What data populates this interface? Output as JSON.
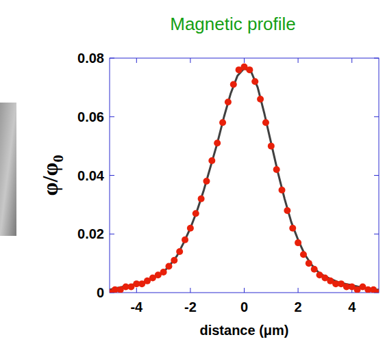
{
  "chart_data": {
    "type": "scatter",
    "title": "Magnetic profile",
    "x_label": "distance (μm)",
    "y_label": "φ/φ0",
    "xlim": [
      -5,
      5
    ],
    "ylim": [
      0,
      0.08
    ],
    "xticks": [
      -4,
      -2,
      0,
      2,
      4
    ],
    "yticks": [
      0,
      0.02,
      0.04,
      0.06,
      0.08
    ],
    "series": [
      {
        "type": "scatter",
        "color": "#e8200a",
        "marker": "circle",
        "x": [
          -5.0,
          -4.8,
          -4.6,
          -4.4,
          -4.2,
          -4.0,
          -3.8,
          -3.6,
          -3.4,
          -3.2,
          -3.0,
          -2.8,
          -2.6,
          -2.4,
          -2.2,
          -2.0,
          -1.8,
          -1.6,
          -1.4,
          -1.2,
          -1.0,
          -0.8,
          -0.6,
          -0.4,
          -0.2,
          0.0,
          0.2,
          0.4,
          0.6,
          0.8,
          1.0,
          1.2,
          1.4,
          1.6,
          1.8,
          2.0,
          2.2,
          2.4,
          2.6,
          2.8,
          3.0,
          3.2,
          3.4,
          3.6,
          3.8,
          4.0,
          4.2,
          4.4,
          4.6,
          4.8,
          5.0
        ],
        "values": [
          0.0,
          0.001,
          0.001,
          0.002,
          0.002,
          0.003,
          0.003,
          0.004,
          0.005,
          0.006,
          0.007,
          0.009,
          0.011,
          0.014,
          0.018,
          0.022,
          0.027,
          0.032,
          0.038,
          0.045,
          0.051,
          0.058,
          0.065,
          0.071,
          0.076,
          0.077,
          0.076,
          0.072,
          0.066,
          0.058,
          0.05,
          0.042,
          0.035,
          0.028,
          0.022,
          0.017,
          0.013,
          0.01,
          0.008,
          0.006,
          0.005,
          0.004,
          0.003,
          0.003,
          0.002,
          0.002,
          0.001,
          0.002,
          0.001,
          0.001,
          0.0
        ]
      },
      {
        "type": "line",
        "color": "#404040",
        "line_style": "solid",
        "x": [
          -5,
          -4.75,
          -4.5,
          -4.25,
          -4,
          -3.75,
          -3.5,
          -3.25,
          -3,
          -2.75,
          -2.5,
          -2.25,
          -2,
          -1.75,
          -1.5,
          -1.25,
          -1,
          -0.75,
          -0.5,
          -0.25,
          0,
          0.25,
          0.5,
          0.75,
          1,
          1.25,
          1.5,
          1.75,
          2,
          2.25,
          2.5,
          2.75,
          3,
          3.25,
          3.5,
          3.75,
          4,
          4.25,
          4.5,
          4.75,
          5
        ],
        "values": [
          0.001,
          0.0015,
          0.002,
          0.0025,
          0.003,
          0.0035,
          0.0045,
          0.0055,
          0.007,
          0.0095,
          0.0125,
          0.017,
          0.022,
          0.028,
          0.035,
          0.043,
          0.051,
          0.06,
          0.068,
          0.074,
          0.0765,
          0.0755,
          0.07,
          0.061,
          0.051,
          0.041,
          0.032,
          0.024,
          0.018,
          0.013,
          0.0095,
          0.007,
          0.0055,
          0.0045,
          0.0035,
          0.003,
          0.0025,
          0.002,
          0.0015,
          0.001,
          0.001
        ]
      }
    ]
  }
}
